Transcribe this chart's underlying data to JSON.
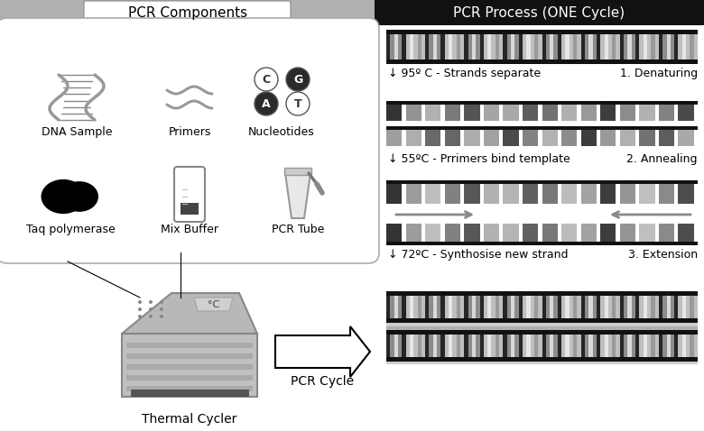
{
  "left_header": "PCR Components",
  "right_header": "PCR Process (ONE Cycle)",
  "bg_color": "#ffffff",
  "steps": [
    {
      "arrow": "↓ 95º C - Strands separate",
      "label": "1. Denaturing"
    },
    {
      "arrow": "↓ 55ºC - Prrimers bind template",
      "label": "2. Annealing"
    },
    {
      "arrow": "↓ 72ºC - Synthosise new strand",
      "label": "3. Extension"
    }
  ],
  "pcr_cycle_label": "PCR Cycle",
  "thermal_cycler_label": "Thermal Cycler",
  "dna_sample_label": "DNA Sample",
  "primers_label": "Primers",
  "nucleotides_label": "Nucleotides",
  "taq_label": "Taq polymerase",
  "mix_label": "Mix Buffer",
  "tube_label": "PCR Tube"
}
